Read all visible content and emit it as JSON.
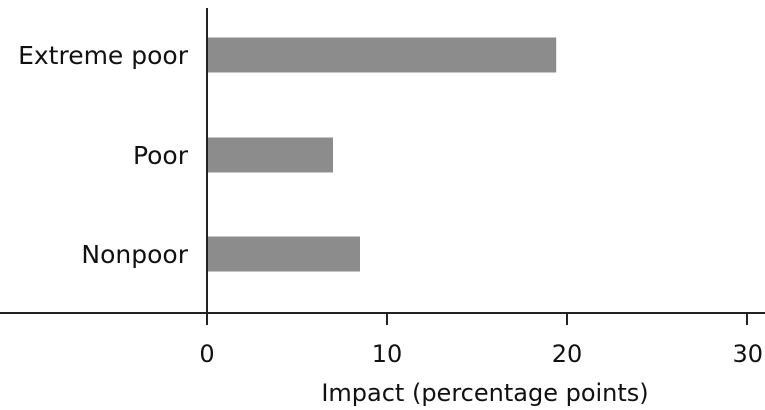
{
  "chart_data": {
    "type": "bar",
    "orientation": "horizontal",
    "categories": [
      "Extreme poor",
      "Poor",
      "Nonpoor"
    ],
    "values": [
      19.4,
      7.0,
      8.5
    ],
    "title": "",
    "xlabel": "Impact (percentage points)",
    "ylabel": "",
    "xlim": [
      0,
      30
    ],
    "xticks": [
      0,
      10,
      20,
      30
    ],
    "xtick_labels": [
      "0",
      "10",
      "20",
      "30"
    ],
    "grid": false,
    "legend": "none",
    "bar_color": "#8c8c8c"
  }
}
